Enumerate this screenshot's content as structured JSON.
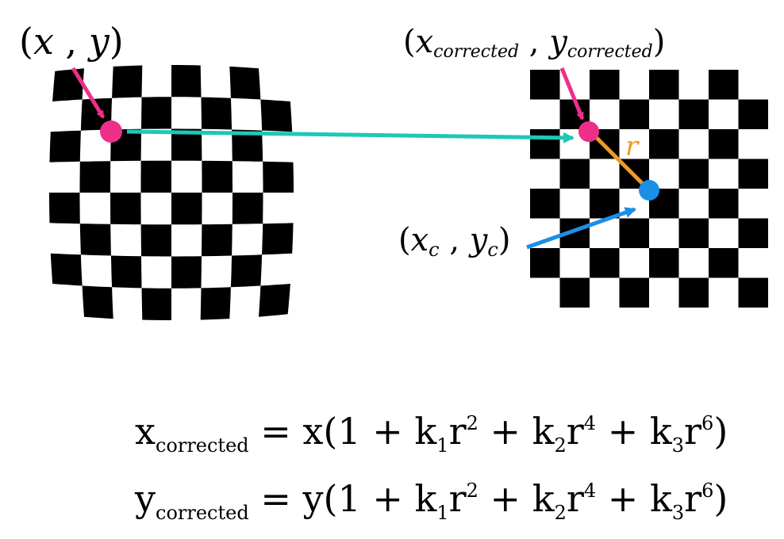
{
  "labels": {
    "distorted_point": {
      "open": "(",
      "x": "x",
      "sep": " , ",
      "y": "y",
      "close": ")"
    },
    "corrected_point": {
      "open": "(",
      "x": "x",
      "x_sub": "corrected",
      "sep": " , ",
      "y": "y",
      "y_sub": "corrected",
      "close": ")"
    },
    "center_point": {
      "open": "(",
      "x": "x",
      "x_sub": "c",
      "sep": " , ",
      "y": "y",
      "y_sub": "c",
      "close": ")"
    },
    "radius": "r"
  },
  "equations": [
    {
      "lhs": "x",
      "lhs_sub": "corrected",
      "eq": " = ",
      "var": "x",
      "open": "(1 + k",
      "s1": "1",
      "m1": "r",
      "p1": "2",
      "plus2": " + k",
      "s2": "2",
      "m2": "r",
      "p2": "4",
      "plus3": " + k",
      "s3": "3",
      "m3": "r",
      "p3": "6",
      "close": ")"
    },
    {
      "lhs": "y",
      "lhs_sub": "corrected",
      "eq": " = ",
      "var": "y",
      "open": "(1 + k",
      "s1": "1",
      "m1": "r",
      "p1": "2",
      "plus2": " + k",
      "s2": "2",
      "m2": "r",
      "p2": "4",
      "plus3": " + k",
      "s3": "3",
      "m3": "r",
      "p3": "6",
      "close": ")"
    }
  ],
  "colors": {
    "pink": "#ee2f8a",
    "teal": "#1cc9b5",
    "orange": "#f39a1e",
    "blue": "#1a8fe6",
    "checker_dark": "#000000",
    "checker_light": "#ffffff"
  },
  "boards": {
    "distorted_cells": 8,
    "corrected_cells": 8
  }
}
